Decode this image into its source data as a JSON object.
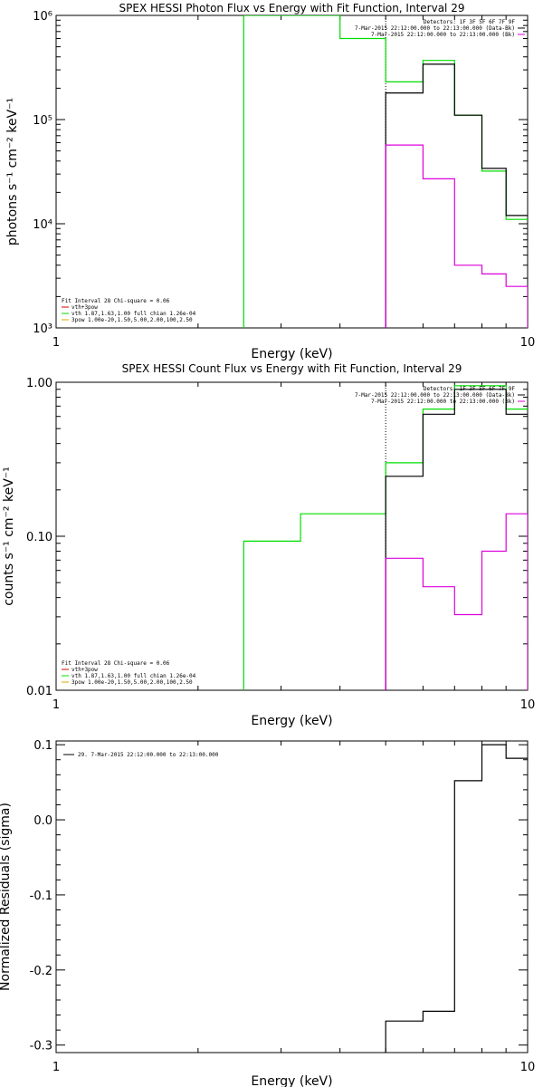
{
  "colors": {
    "black": "#000000",
    "green": "#00dd00",
    "magenta": "#dd00dd",
    "red": "#dd0000",
    "orange": "#ddaa00"
  },
  "chart_data": [
    {
      "type": "line",
      "title": "SPEX HESSI Photon Flux vs Energy with Fit Function, Interval 29",
      "xlabel": "Energy (keV)",
      "ylabel": "photons s⁻¹ cm⁻² keV⁻¹",
      "xscale": "log",
      "yscale": "log",
      "xlim": [
        1,
        10
      ],
      "ylim": [
        1000,
        1000000
      ],
      "x_ticks": [
        {
          "v": 1,
          "label": "1"
        },
        {
          "v": 10,
          "label": "10"
        }
      ],
      "y_ticks": [
        {
          "v": 1000,
          "label": "10³"
        },
        {
          "v": 10000,
          "label": "10⁴"
        },
        {
          "v": 100000,
          "label": "10⁵"
        },
        {
          "v": 1000000,
          "label": "10⁶"
        }
      ],
      "top_legend": [
        {
          "text": "Detectors: 1F 3F 5F 6F 7F 9F",
          "color": "#000000"
        },
        {
          "text": "7-Mar-2015 22:12:00.000 to 22:13:00.000 (Data-Bk)",
          "color": "#000000"
        },
        {
          "text": "7-Mar-2015 22:12:00.000 to 22:13:00.000 (Bk)",
          "color": "#dd00dd"
        }
      ],
      "bottom_legend": [
        {
          "text": "Fit Interval 28   Chi-square = 0.06",
          "color": "#000000",
          "line": false
        },
        {
          "text": "vth+3pow",
          "color": "#dd0000",
          "line": true
        },
        {
          "text": "vth 1.87,1.63,1.00  full chian 1.26e-04",
          "color": "#00dd00",
          "line": true
        },
        {
          "text": "3pow 1.00e-20,1.50,5.00,2.00,100,2.50",
          "color": "#ddaa00",
          "line": true
        }
      ],
      "dotted_line_x": 5,
      "series": [
        {
          "color": "#00dd00",
          "steps": [
            [
              2.5,
              1000
            ],
            [
              2.5,
              1000000
            ],
            [
              4,
              1000000
            ],
            [
              4,
              600000
            ],
            [
              5,
              600000
            ],
            [
              5,
              230000
            ],
            [
              6,
              230000
            ],
            [
              6,
              370000
            ],
            [
              7,
              370000
            ],
            [
              7,
              110000
            ],
            [
              8,
              110000
            ],
            [
              8,
              32000
            ],
            [
              9,
              32000
            ],
            [
              9,
              11000
            ],
            [
              10,
              11000
            ]
          ]
        },
        {
          "color": "#000000",
          "steps": [
            [
              5,
              1000
            ],
            [
              5,
              180000
            ],
            [
              6,
              180000
            ],
            [
              6,
              340000
            ],
            [
              7,
              340000
            ],
            [
              7,
              110000
            ],
            [
              8,
              110000
            ],
            [
              8,
              34000
            ],
            [
              9,
              34000
            ],
            [
              9,
              12000
            ],
            [
              10,
              12000
            ]
          ]
        },
        {
          "color": "#dd00dd",
          "steps": [
            [
              5,
              1000
            ],
            [
              5,
              57000
            ],
            [
              6,
              57000
            ],
            [
              6,
              27000
            ],
            [
              7,
              27000
            ],
            [
              7,
              4000
            ],
            [
              8,
              4000
            ],
            [
              8,
              3300
            ],
            [
              9,
              3300
            ],
            [
              9,
              2500
            ],
            [
              10,
              2500
            ],
            [
              10,
              1000
            ]
          ]
        }
      ]
    },
    {
      "type": "line",
      "title": "SPEX HESSI Count Flux vs Energy with Fit Function, Interval 29",
      "xlabel": "Energy (keV)",
      "ylabel": "counts s⁻¹ cm⁻² keV⁻¹",
      "xscale": "log",
      "yscale": "log",
      "xlim": [
        1,
        10
      ],
      "ylim": [
        0.01,
        1
      ],
      "x_ticks": [
        {
          "v": 1,
          "label": "1"
        },
        {
          "v": 10,
          "label": "10"
        }
      ],
      "y_ticks": [
        {
          "v": 0.01,
          "label": "0.01"
        },
        {
          "v": 0.1,
          "label": "0.10"
        },
        {
          "v": 1,
          "label": "1.00"
        }
      ],
      "top_legend": [
        {
          "text": "Detectors: 1F 3F 5F 6F 7F 9F",
          "color": "#000000"
        },
        {
          "text": "7-Mar-2015 22:12:00.000 to 22:13:00.000 (Data-Bk)",
          "color": "#000000"
        },
        {
          "text": "7-Mar-2015 22:12:00.000 to 22:13:00.000 (Bk)",
          "color": "#dd00dd"
        }
      ],
      "bottom_legend": [
        {
          "text": "Fit Interval 28   Chi-square = 0.06",
          "color": "#000000",
          "line": false
        },
        {
          "text": "vth+3pow",
          "color": "#dd0000",
          "line": true
        },
        {
          "text": "vth 1.87,1.63,1.00  full chian 1.26e-04",
          "color": "#00dd00",
          "line": true
        },
        {
          "text": "3pow 1.00e-20,1.50,5.00,2.00,100,2.50",
          "color": "#ddaa00",
          "line": true
        }
      ],
      "dotted_line_x": 5,
      "series": [
        {
          "color": "#00dd00",
          "steps": [
            [
              2.5,
              0.01
            ],
            [
              2.5,
              0.093
            ],
            [
              3.3,
              0.093
            ],
            [
              3.3,
              0.14
            ],
            [
              4,
              0.14
            ],
            [
              4,
              0.14
            ],
            [
              5,
              0.14
            ],
            [
              5,
              0.3
            ],
            [
              6,
              0.3
            ],
            [
              6,
              0.67
            ],
            [
              7,
              0.67
            ],
            [
              7,
              0.95
            ],
            [
              9,
              0.95
            ],
            [
              9,
              0.67
            ],
            [
              10,
              0.67
            ]
          ]
        },
        {
          "color": "#000000",
          "steps": [
            [
              5,
              0.01
            ],
            [
              5,
              0.245
            ],
            [
              6,
              0.245
            ],
            [
              6,
              0.62
            ],
            [
              7,
              0.62
            ],
            [
              7,
              0.9
            ],
            [
              9,
              0.9
            ],
            [
              9,
              0.62
            ],
            [
              10,
              0.62
            ]
          ]
        },
        {
          "color": "#dd00dd",
          "steps": [
            [
              5,
              0.01
            ],
            [
              5,
              0.072
            ],
            [
              6,
              0.072
            ],
            [
              6,
              0.047
            ],
            [
              7,
              0.047
            ],
            [
              7,
              0.031
            ],
            [
              8,
              0.031
            ],
            [
              8,
              0.08
            ],
            [
              9,
              0.08
            ],
            [
              9,
              0.14
            ],
            [
              10,
              0.14
            ],
            [
              10,
              0.01
            ]
          ]
        }
      ]
    },
    {
      "type": "line",
      "title": "",
      "xlabel": "Energy (keV)",
      "ylabel": "Normalized Residuals (sigma)",
      "xscale": "log",
      "yscale": "linear",
      "xlim": [
        1,
        10
      ],
      "ylim": [
        -0.31,
        0.105
      ],
      "x_ticks": [
        {
          "v": 1,
          "label": "1"
        },
        {
          "v": 10,
          "label": "10"
        }
      ],
      "y_ticks": [
        {
          "v": 0.1,
          "label": "0.1"
        },
        {
          "v": 0.0,
          "label": "0.0"
        },
        {
          "v": -0.1,
          "label": "-0.1"
        },
        {
          "v": -0.2,
          "label": "-0.2"
        },
        {
          "v": -0.3,
          "label": "-0.3"
        }
      ],
      "top_legend": [],
      "bottom_legend": [],
      "inline_legend": {
        "text": "29.  7-Mar-2015 22:12:00.000 to 22:13:00.000",
        "color": "#000000"
      },
      "series": [
        {
          "color": "#000000",
          "steps": [
            [
              5,
              -0.31
            ],
            [
              5,
              -0.268
            ],
            [
              6,
              -0.268
            ],
            [
              6,
              -0.255
            ],
            [
              7,
              -0.255
            ],
            [
              7,
              0.052
            ],
            [
              8,
              0.052
            ],
            [
              8,
              0.1
            ],
            [
              9,
              0.1
            ],
            [
              9,
              0.082
            ],
            [
              10,
              0.082
            ]
          ]
        }
      ]
    }
  ]
}
